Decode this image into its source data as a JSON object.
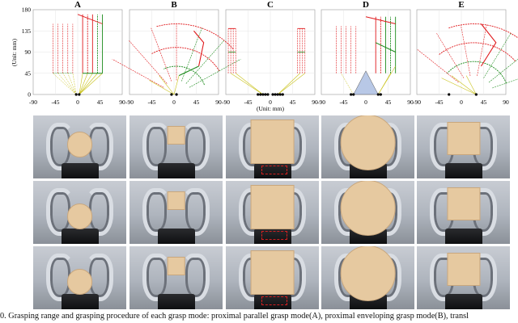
{
  "panels": [
    "A",
    "B",
    "C",
    "D",
    "E"
  ],
  "y_ticks": [
    "180",
    "135",
    "90",
    "45",
    "0"
  ],
  "x_ticks": [
    "-90",
    "-45",
    "0",
    "45",
    "90"
  ],
  "y_unit": "(Unit: mm)",
  "x_unit": "(Unit: mm)",
  "colors": {
    "red": "#e0191c",
    "green": "#1a8a1a",
    "yellow": "#c9c21a",
    "triangle": "#b8c8e6"
  },
  "photo_rows": [
    [
      {
        "shape": "circle",
        "size": 0.26,
        "y": 0.45
      },
      {
        "shape": "square",
        "size": 0.18,
        "y": 0.3
      },
      {
        "shape": "square",
        "size": 0.46,
        "y": 0.4,
        "hl": true
      },
      {
        "shape": "circle",
        "size": 0.58,
        "y": 0.42
      },
      {
        "shape": "square",
        "size": 0.34,
        "y": 0.35
      }
    ],
    [
      {
        "shape": "circle",
        "size": 0.26,
        "y": 0.55
      },
      {
        "shape": "square",
        "size": 0.18,
        "y": 0.3
      },
      {
        "shape": "square",
        "size": 0.46,
        "y": 0.4,
        "hl": true
      },
      {
        "shape": "circle",
        "size": 0.58,
        "y": 0.42
      },
      {
        "shape": "square",
        "size": 0.34,
        "y": 0.35
      }
    ],
    [
      {
        "shape": "circle",
        "size": 0.26,
        "y": 0.55
      },
      {
        "shape": "square",
        "size": 0.18,
        "y": 0.3
      },
      {
        "shape": "square",
        "size": 0.46,
        "y": 0.4,
        "hl": true
      },
      {
        "shape": "circle",
        "size": 0.58,
        "y": 0.42
      },
      {
        "shape": "square",
        "size": 0.34,
        "y": 0.35
      }
    ]
  ],
  "caption": "0.   Grasping range and grasping procedure of each grasp mode: proximal parallel grasp mode(A), proximal enveloping grasp mode(B), transl"
}
